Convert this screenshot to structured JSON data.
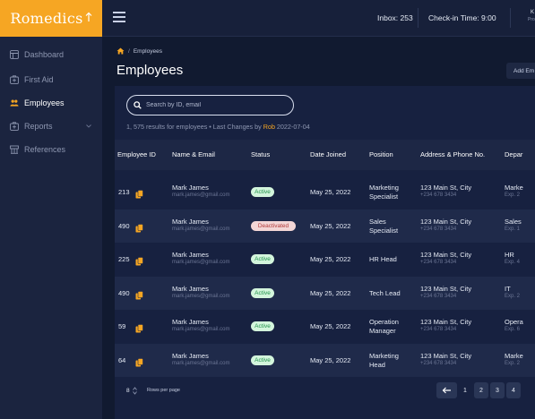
{
  "app": {
    "name": "Romedics",
    "logo_color": "#f6a623"
  },
  "topbar": {
    "inbox": "Inbox: 253",
    "checkin": "Check-in Time: 9:00",
    "profile_initial": "K",
    "profile_sub": "Pro"
  },
  "sidebar": {
    "items": [
      {
        "label": "Dashboard",
        "icon": "dashboard-icon"
      },
      {
        "label": "First Aid",
        "icon": "first-aid-icon"
      },
      {
        "label": "Employees",
        "icon": "employees-icon",
        "active": true
      },
      {
        "label": "Reports",
        "icon": "reports-icon",
        "has_chevron": true
      },
      {
        "label": "References",
        "icon": "references-icon"
      }
    ]
  },
  "breadcrumb": {
    "home_icon": "home-icon",
    "separator": "/",
    "current": "Employees"
  },
  "page": {
    "title": "Employees",
    "add_button": "Add Em"
  },
  "search": {
    "placeholder": "Search by ID, email"
  },
  "results": {
    "prefix": "1, 575 results for employees • Last Changes by ",
    "who": "Rob",
    "date": " 2022-07-04"
  },
  "table": {
    "headers": [
      "Employee ID",
      "Name & Email",
      "Status",
      "Date Joined",
      "Position",
      "Address & Phone No.",
      "Depar"
    ],
    "rows": [
      {
        "id": "213",
        "name": "Mark James",
        "email": "mark.james@gmail.com",
        "status": "Active",
        "status_type": "active",
        "date": "May 25, 2022",
        "position": [
          "Marketing",
          "Specialist"
        ],
        "address": "123 Main St, City",
        "phone": "+234 678 3434",
        "dept": "Marke",
        "exp": "Exp. 2"
      },
      {
        "id": "490",
        "name": "Mark James",
        "email": "mark.james@gmail.com",
        "status": "Deactivated",
        "status_type": "deactivated",
        "date": "May 25, 2022",
        "position": [
          "Sales",
          "Specialist"
        ],
        "address": "123 Main St, City",
        "phone": "+234 678 3434",
        "dept": "Sales",
        "exp": "Exp. 1"
      },
      {
        "id": "225",
        "name": "Mark James",
        "email": "mark.james@gmail.com",
        "status": "Active",
        "status_type": "active",
        "date": "May 25, 2022",
        "position": [
          "HR Head"
        ],
        "address": "123 Main St, City",
        "phone": "+234 678 3434",
        "dept": "HR",
        "exp": "Exp. 4"
      },
      {
        "id": "490",
        "name": "Mark James",
        "email": "mark.james@gmail.com",
        "status": "Active",
        "status_type": "active",
        "date": "May 25, 2022",
        "position": [
          "Tech Lead"
        ],
        "address": "123 Main St, City",
        "phone": "+234 678 3434",
        "dept": "IT",
        "exp": "Exp. 2"
      },
      {
        "id": "59",
        "name": "Mark James",
        "email": "mark.james@gmail.com",
        "status": "Active",
        "status_type": "active",
        "date": "May 25, 2022",
        "position": [
          "Operation",
          "Manager"
        ],
        "address": "123 Main St, City",
        "phone": "+234 678 3434",
        "dept": "Opera",
        "exp": "Exp. 6"
      },
      {
        "id": "64",
        "name": "Mark James",
        "email": "mark.james@gmail.com",
        "status": "Active",
        "status_type": "active",
        "date": "May 25, 2022",
        "position": [
          "Marketing",
          "Head"
        ],
        "address": "123 Main St, City",
        "phone": "+234 678 3434",
        "dept": "Marke",
        "exp": "Exp. 2"
      }
    ]
  },
  "pagination": {
    "rows_per_page_value": "8",
    "rows_per_page_label": "Rows per page",
    "prev_icon": "arrow-left-icon",
    "pages": [
      "1",
      "2",
      "3",
      "4"
    ],
    "current_page": "1"
  },
  "colors": {
    "accent": "#f6a623",
    "active_badge": "#d3f5dc",
    "deactivated_badge": "#f3d6d6"
  }
}
